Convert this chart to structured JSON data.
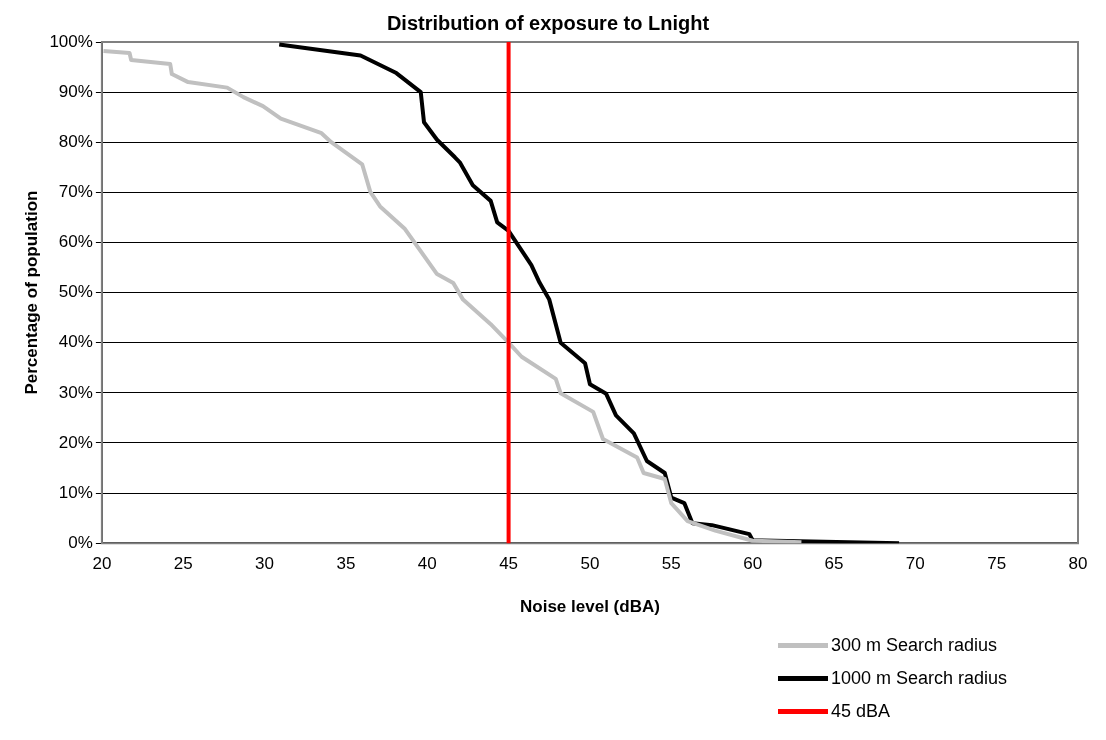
{
  "chart_data": {
    "type": "line",
    "title": "Distribution of exposure to Lnight",
    "xlabel": "Noise level (dBA)",
    "ylabel": "Percentage of population",
    "xlim": [
      20,
      80
    ],
    "xticks": [
      20,
      25,
      30,
      35,
      40,
      45,
      50,
      55,
      60,
      65,
      70,
      75,
      80
    ],
    "ylim": [
      0,
      100
    ],
    "yticks": [
      {
        "value": 0,
        "label": "0%"
      },
      {
        "value": 10,
        "label": "10%"
      },
      {
        "value": 20,
        "label": "20%"
      },
      {
        "value": 30,
        "label": "30%"
      },
      {
        "value": 40,
        "label": "40%"
      },
      {
        "value": 50,
        "label": "50%"
      },
      {
        "value": 60,
        "label": "60%"
      },
      {
        "value": 70,
        "label": "70%"
      },
      {
        "value": 80,
        "label": "80%"
      },
      {
        "value": 90,
        "label": "90%"
      },
      {
        "value": 100,
        "label": "100%"
      }
    ],
    "grid": "y",
    "legend": "bottom right",
    "marker": "none",
    "line_style": "solid",
    "series": [
      {
        "name": "300 m Search radius",
        "color": "#c0c0c0",
        "x": [
          20.1,
          21.7,
          21.8,
          24.2,
          24.3,
          25.3,
          27.7,
          28.7,
          29.9,
          31,
          33.5,
          34.1,
          36,
          36.5,
          37.1,
          38.6,
          40.6,
          41.6,
          42.2,
          43.9,
          45,
          45.8,
          47.9,
          48.2,
          50.2,
          50.8,
          52.9,
          53.3,
          54.6,
          55,
          56,
          57.7,
          60,
          63
        ],
        "values": [
          98.2,
          97.8,
          96.4,
          95.6,
          93.6,
          92,
          90.9,
          89,
          87.2,
          84.7,
          81.8,
          80,
          75.6,
          70.1,
          67.2,
          62.8,
          53.7,
          51.9,
          48.6,
          43.7,
          40,
          37.2,
          32.8,
          29.9,
          26.2,
          20.8,
          17.1,
          14,
          12.8,
          8,
          4.4,
          2.5,
          0.5,
          0.2
        ]
      },
      {
        "name": "1000 m Search radius",
        "color": "#000000",
        "x": [
          30.9,
          35.9,
          38.1,
          39.6,
          39.8,
          40.6,
          41.7,
          42,
          42.8,
          43.9,
          44.3,
          45,
          46.4,
          46.9,
          47.5,
          48.2,
          49.7,
          50,
          51,
          51.6,
          52.7,
          53.5,
          54.6,
          55,
          55.8,
          56.3,
          57.5,
          59.8,
          60,
          69
        ],
        "values": [
          99.5,
          97.3,
          93.8,
          90,
          84,
          80.5,
          77,
          76,
          71.4,
          68.3,
          64,
          62.3,
          55.5,
          52,
          48.6,
          40,
          35.9,
          31.7,
          29.8,
          25.5,
          21.9,
          16.4,
          14,
          9.1,
          8,
          4,
          3.6,
          1.8,
          0.6,
          0
        ]
      }
    ],
    "ref_lines": [
      {
        "axis": "x",
        "value": 45,
        "label": "45 dBA",
        "color": "#ff0000"
      }
    ]
  }
}
